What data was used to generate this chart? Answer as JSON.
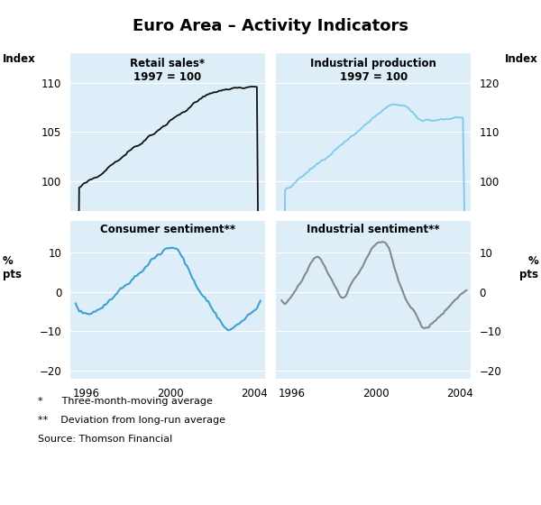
{
  "title": "Euro Area – Activity Indicators",
  "background_color": "#ffffff",
  "panel_bg": "#ddeef8",
  "top_left": {
    "label": "Retail sales*\n1997 = 100",
    "ylabel_left": "Index",
    "ylim": [
      97,
      113
    ],
    "yticks": [
      100,
      105,
      110
    ],
    "color": "#111111",
    "start_year": 1995.25,
    "end_year": 2004.5
  },
  "top_right": {
    "label": "Industrial production\n1997 = 100",
    "ylabel_right": "Index",
    "ylim": [
      94,
      126
    ],
    "yticks": [
      100,
      110,
      120
    ],
    "color": "#7ec8e8",
    "start_year": 1995.25,
    "end_year": 2004.5
  },
  "bottom_left": {
    "label": "Consumer sentiment**",
    "ylabel_left": "%\npts",
    "ylim": [
      -22,
      18
    ],
    "yticks": [
      -20,
      -10,
      0,
      10
    ],
    "color": "#3fa0d0",
    "start_year": 1995.25,
    "end_year": 2004.5
  },
  "bottom_right": {
    "label": "Industrial sentiment**",
    "ylabel_right": "%\npts",
    "ylim": [
      -22,
      18
    ],
    "yticks": [
      -20,
      -10,
      0,
      10
    ],
    "color": "#888888",
    "start_year": 1995.25,
    "end_year": 2004.5
  },
  "xticks": [
    1996,
    2000,
    2004
  ],
  "footnotes": [
    "*      Three-month-moving average",
    "**    Deviation from long-run average",
    "Source: Thomson Financial"
  ]
}
